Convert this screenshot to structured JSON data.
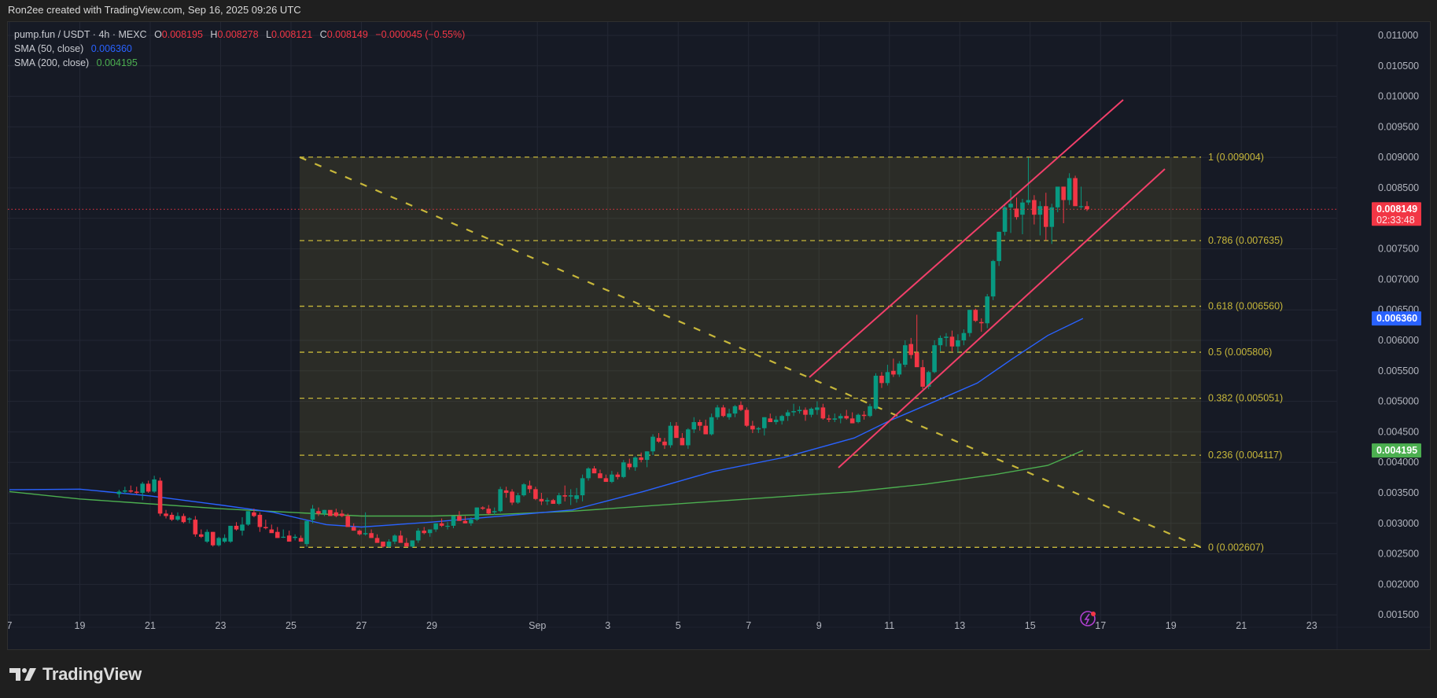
{
  "header": {
    "credit": "Ron2ee created with TradingView.com, Sep 16, 2025 09:26 UTC"
  },
  "legend": {
    "symbol": "pump.fun / USDT · 4h · MEXC",
    "open_label": "O",
    "open": "0.008195",
    "high_label": "H",
    "high": "0.008278",
    "low_label": "L",
    "low": "0.008121",
    "close_label": "C",
    "close": "0.008149",
    "change": "−0.000045 (−0.55%)",
    "sma50_label": "SMA (50, close)",
    "sma50_value": "0.006360",
    "sma200_label": "SMA (200, close)",
    "sma200_value": "0.004195"
  },
  "price_axis": {
    "ticks": [
      "0.011000",
      "0.010500",
      "0.010000",
      "0.009500",
      "0.009000",
      "0.008500",
      "0.008000",
      "0.007500",
      "0.007000",
      "0.006500",
      "0.006000",
      "0.005500",
      "0.005000",
      "0.004500",
      "0.004000",
      "0.003500",
      "0.003000",
      "0.002500",
      "0.002000",
      "0.001500"
    ],
    "last_price_badge": {
      "value": "0.008149",
      "countdown": "02:33:48",
      "color": "#f23645"
    },
    "sma50_badge": {
      "value": "0.006360",
      "color": "#2962ff"
    },
    "sma200_badge": {
      "value": "0.004195",
      "color": "#4caf50"
    }
  },
  "time_axis": {
    "labels": [
      "7",
      "19",
      "21",
      "23",
      "25",
      "27",
      "29",
      "Sep",
      "3",
      "5",
      "7",
      "9",
      "11",
      "13",
      "15",
      "17",
      "19",
      "21",
      "23"
    ]
  },
  "footer": {
    "brand": "TradingView"
  },
  "colors": {
    "up": "#089981",
    "down": "#f23645",
    "sma50": "#2962ff",
    "sma200": "#4caf50",
    "fib": "#c7b73a",
    "channel": "#f23f6a",
    "background": "#161a25"
  },
  "chart_data": {
    "type": "candlestick",
    "title": "pump.fun / USDT · 4h · MEXC",
    "xlabel": "",
    "ylabel": "",
    "ylim": [
      0.00125,
      0.0112
    ],
    "x_range": [
      "Aug 17 2025",
      "Sep 24 2025"
    ],
    "grid": true,
    "fibonacci_retracement": {
      "levels": [
        {
          "ratio": "1",
          "price": 0.009004,
          "label": "1 (0.009004)"
        },
        {
          "ratio": "0.786",
          "price": 0.007635,
          "label": "0.786 (0.007635)"
        },
        {
          "ratio": "0.618",
          "price": 0.00656,
          "label": "0.618 (0.006560)"
        },
        {
          "ratio": "0.5",
          "price": 0.005806,
          "label": "0.5 (0.005806)"
        },
        {
          "ratio": "0.382",
          "price": 0.005051,
          "label": "0.382 (0.005051)"
        },
        {
          "ratio": "0.236",
          "price": 0.004117,
          "label": "0.236 (0.004117)"
        },
        {
          "ratio": "0",
          "price": 0.002607,
          "label": "0 (0.002607)"
        }
      ],
      "start": "Aug 25",
      "end": "Sep 19.5"
    },
    "ascending_channel": {
      "upper": [
        [
          "Sep 8.5",
          0.005
        ],
        [
          "Sep 17.4",
          0.00955
        ]
      ],
      "lower": [
        [
          "Sep 9.3",
          0.00395
        ],
        [
          "Sep 18.5",
          0.00885
        ]
      ]
    },
    "sma": [
      {
        "name": "SMA (50, close)",
        "last": 0.00636
      },
      {
        "name": "SMA (200, close)",
        "last": 0.004195
      }
    ],
    "last_close": 0.008149,
    "candles_ohlc": [
      [
        0.00348,
        0.00355,
        0.00342,
        0.00352
      ],
      [
        0.00352,
        0.0036,
        0.00348,
        0.00354
      ],
      [
        0.00354,
        0.00362,
        0.0035,
        0.00352
      ],
      [
        0.00352,
        0.0036,
        0.00348,
        0.0035
      ],
      [
        0.0035,
        0.00368,
        0.00338,
        0.00365
      ],
      [
        0.00365,
        0.0037,
        0.0035,
        0.00352
      ],
      [
        0.00352,
        0.00378,
        0.0035,
        0.00372
      ],
      [
        0.0037,
        0.00375,
        0.00312,
        0.00316
      ],
      [
        0.00316,
        0.00322,
        0.00308,
        0.00312
      ],
      [
        0.00314,
        0.00318,
        0.00304,
        0.00306
      ],
      [
        0.00306,
        0.00318,
        0.00304,
        0.00312
      ],
      [
        0.00312,
        0.00316,
        0.003,
        0.00302
      ],
      [
        0.00306,
        0.0031,
        0.003,
        0.00308
      ],
      [
        0.00306,
        0.00312,
        0.00278,
        0.00282
      ],
      [
        0.00282,
        0.0029,
        0.00276,
        0.00278
      ],
      [
        0.0027,
        0.0029,
        0.00268,
        0.00286
      ],
      [
        0.00286,
        0.00286,
        0.00262,
        0.00264
      ],
      [
        0.00264,
        0.00278,
        0.00262,
        0.00276
      ],
      [
        0.0027,
        0.00282,
        0.00268,
        0.00276
      ],
      [
        0.0027,
        0.00292,
        0.00268,
        0.00296
      ],
      [
        0.00296,
        0.00302,
        0.00288,
        0.0029
      ],
      [
        0.00288,
        0.0031,
        0.0028,
        0.00298
      ],
      [
        0.00298,
        0.0032,
        0.00296,
        0.0032
      ],
      [
        0.00318,
        0.00324,
        0.0031,
        0.00312
      ],
      [
        0.00314,
        0.00318,
        0.00286,
        0.00294
      ],
      [
        0.00294,
        0.00306,
        0.0029,
        0.00292
      ],
      [
        0.0029,
        0.00298,
        0.00286,
        0.00284
      ],
      [
        0.00286,
        0.00294,
        0.00276,
        0.00276
      ],
      [
        0.00278,
        0.0029,
        0.00276,
        0.00278
      ],
      [
        0.0028,
        0.00288,
        0.0027,
        0.0027
      ],
      [
        0.00276,
        0.00282,
        0.00272,
        0.00278
      ],
      [
        0.00276,
        0.0028,
        0.0027,
        0.0027
      ],
      [
        0.00266,
        0.003,
        0.00262,
        0.00304
      ],
      [
        0.00306,
        0.0033,
        0.003,
        0.00324
      ],
      [
        0.0032,
        0.00326,
        0.00312,
        0.00316
      ],
      [
        0.00316,
        0.00322,
        0.00312,
        0.00322
      ],
      [
        0.00322,
        0.0032,
        0.00312,
        0.00312
      ],
      [
        0.00318,
        0.00324,
        0.0031,
        0.00312
      ],
      [
        0.00316,
        0.00322,
        0.0031,
        0.00312
      ],
      [
        0.00312,
        0.00316,
        0.00296,
        0.00294
      ],
      [
        0.00294,
        0.003,
        0.00288,
        0.00288
      ],
      [
        0.00288,
        0.0029,
        0.0028,
        0.00282
      ],
      [
        0.00282,
        0.00318,
        0.0028,
        0.00284
      ],
      [
        0.00284,
        0.0029,
        0.00276,
        0.00276
      ],
      [
        0.00276,
        0.00282,
        0.0027,
        0.00268
      ],
      [
        0.0027,
        0.0027,
        0.0026,
        0.00262
      ],
      [
        0.00262,
        0.00274,
        0.0026,
        0.0027
      ],
      [
        0.0027,
        0.00282,
        0.00266,
        0.0028
      ],
      [
        0.0028,
        0.00288,
        0.0027,
        0.00268
      ],
      [
        0.00268,
        0.00276,
        0.00262,
        0.00262
      ],
      [
        0.00262,
        0.00272,
        0.0026,
        0.00272
      ],
      [
        0.00272,
        0.00292,
        0.00268,
        0.00288
      ],
      [
        0.00288,
        0.00294,
        0.00282,
        0.00284
      ],
      [
        0.00284,
        0.0029,
        0.00278,
        0.0029
      ],
      [
        0.0029,
        0.003,
        0.00286,
        0.003
      ],
      [
        0.003,
        0.00308,
        0.00294,
        0.00296
      ],
      [
        0.00296,
        0.00302,
        0.0029,
        0.00296
      ],
      [
        0.00296,
        0.00312,
        0.00292,
        0.00312
      ],
      [
        0.00312,
        0.0032,
        0.00306,
        0.00304
      ],
      [
        0.00304,
        0.00312,
        0.003,
        0.003
      ],
      [
        0.003,
        0.0031,
        0.00296,
        0.00306
      ],
      [
        0.00306,
        0.00326,
        0.00304,
        0.00326
      ],
      [
        0.00326,
        0.00328,
        0.00322,
        0.00324
      ],
      [
        0.00324,
        0.0033,
        0.00314,
        0.00316
      ],
      [
        0.00318,
        0.00326,
        0.00314,
        0.0032
      ],
      [
        0.0032,
        0.0036,
        0.00318,
        0.00356
      ],
      [
        0.00354,
        0.0036,
        0.00342,
        0.0035
      ],
      [
        0.00352,
        0.00356,
        0.0033,
        0.00334
      ],
      [
        0.00334,
        0.0035,
        0.00332,
        0.00346
      ],
      [
        0.00346,
        0.00366,
        0.00344,
        0.00364
      ],
      [
        0.00362,
        0.0037,
        0.0035,
        0.00356
      ],
      [
        0.00356,
        0.0036,
        0.00338,
        0.0034
      ],
      [
        0.0034,
        0.0035,
        0.0033,
        0.00336
      ],
      [
        0.00336,
        0.00342,
        0.0033,
        0.00338
      ],
      [
        0.00338,
        0.0034,
        0.00332,
        0.00332
      ],
      [
        0.00332,
        0.0035,
        0.0033,
        0.00346
      ],
      [
        0.00346,
        0.00362,
        0.00336,
        0.00344
      ],
      [
        0.00344,
        0.00356,
        0.0033,
        0.00346
      ],
      [
        0.0034,
        0.00358,
        0.00334,
        0.00346
      ],
      [
        0.00346,
        0.0038,
        0.00336,
        0.00374
      ],
      [
        0.00374,
        0.00392,
        0.0037,
        0.0039
      ],
      [
        0.0039,
        0.00394,
        0.00382,
        0.00382
      ],
      [
        0.00382,
        0.00388,
        0.00376,
        0.00374
      ],
      [
        0.00374,
        0.0038,
        0.0037,
        0.00368
      ],
      [
        0.00368,
        0.00386,
        0.00366,
        0.0038
      ],
      [
        0.0038,
        0.00384,
        0.00372,
        0.00376
      ],
      [
        0.00376,
        0.00404,
        0.00374,
        0.004
      ],
      [
        0.00398,
        0.00406,
        0.00388,
        0.00392
      ],
      [
        0.00392,
        0.0041,
        0.00386,
        0.00408
      ],
      [
        0.00408,
        0.00416,
        0.004,
        0.00404
      ],
      [
        0.00404,
        0.00418,
        0.00392,
        0.00418
      ],
      [
        0.00418,
        0.00446,
        0.00412,
        0.00442
      ],
      [
        0.0044,
        0.00448,
        0.00432,
        0.00434
      ],
      [
        0.00434,
        0.0044,
        0.00422,
        0.00428
      ],
      [
        0.00428,
        0.00466,
        0.00424,
        0.0046
      ],
      [
        0.0046,
        0.00466,
        0.00444,
        0.0044
      ],
      [
        0.0044,
        0.00448,
        0.00428,
        0.00428
      ],
      [
        0.00428,
        0.00456,
        0.00422,
        0.00454
      ],
      [
        0.00454,
        0.00474,
        0.00448,
        0.00466
      ],
      [
        0.00466,
        0.0047,
        0.00452,
        0.0046
      ],
      [
        0.0046,
        0.0047,
        0.00446,
        0.00446
      ],
      [
        0.00446,
        0.0048,
        0.00444,
        0.00474
      ],
      [
        0.00474,
        0.00494,
        0.0047,
        0.0049
      ],
      [
        0.0049,
        0.00494,
        0.00474,
        0.00476
      ],
      [
        0.00474,
        0.00488,
        0.0047,
        0.0048
      ],
      [
        0.0048,
        0.00494,
        0.00474,
        0.00492
      ],
      [
        0.00494,
        0.005,
        0.00484,
        0.00486
      ],
      [
        0.00486,
        0.0049,
        0.00458,
        0.0046
      ],
      [
        0.0046,
        0.00468,
        0.00448,
        0.00454
      ],
      [
        0.00454,
        0.00458,
        0.00448,
        0.00456
      ],
      [
        0.00456,
        0.00474,
        0.00444,
        0.00474
      ],
      [
        0.00472,
        0.0048,
        0.00466,
        0.00466
      ],
      [
        0.00466,
        0.00476,
        0.00462,
        0.0047
      ],
      [
        0.00468,
        0.00478,
        0.00462,
        0.00476
      ],
      [
        0.00476,
        0.00486,
        0.00468,
        0.00482
      ],
      [
        0.00482,
        0.00496,
        0.00476,
        0.00484
      ],
      [
        0.00484,
        0.00492,
        0.0048,
        0.00486
      ],
      [
        0.00486,
        0.0049,
        0.00468,
        0.00478
      ],
      [
        0.00478,
        0.0049,
        0.00474,
        0.00488
      ],
      [
        0.00486,
        0.005,
        0.00478,
        0.0049
      ],
      [
        0.0049,
        0.00496,
        0.0047,
        0.00472
      ],
      [
        0.00472,
        0.00478,
        0.00466,
        0.0047
      ],
      [
        0.0047,
        0.0048,
        0.00466,
        0.00472
      ],
      [
        0.00472,
        0.0048,
        0.00464,
        0.00476
      ],
      [
        0.00476,
        0.00486,
        0.0047,
        0.00472
      ],
      [
        0.00472,
        0.00482,
        0.00464,
        0.00464
      ],
      [
        0.00466,
        0.0048,
        0.00464,
        0.00478
      ],
      [
        0.00478,
        0.00484,
        0.0047,
        0.00476
      ],
      [
        0.00476,
        0.00496,
        0.00474,
        0.00492
      ],
      [
        0.00488,
        0.00546,
        0.00486,
        0.00542
      ],
      [
        0.00542,
        0.00548,
        0.00522,
        0.0053
      ],
      [
        0.0053,
        0.0056,
        0.00526,
        0.00548
      ],
      [
        0.0055,
        0.0057,
        0.0054,
        0.00544
      ],
      [
        0.00544,
        0.00566,
        0.0054,
        0.00562
      ],
      [
        0.0056,
        0.006,
        0.00556,
        0.00592
      ],
      [
        0.00594,
        0.00604,
        0.0057,
        0.00576
      ],
      [
        0.0058,
        0.00642,
        0.0056,
        0.00556
      ],
      [
        0.00556,
        0.00568,
        0.0052,
        0.00524
      ],
      [
        0.00524,
        0.0055,
        0.0052,
        0.00548
      ],
      [
        0.00548,
        0.006,
        0.00546,
        0.00592
      ],
      [
        0.00592,
        0.00608,
        0.00582,
        0.00604
      ],
      [
        0.00604,
        0.00612,
        0.0059,
        0.00606
      ],
      [
        0.00606,
        0.00616,
        0.00582,
        0.0059
      ],
      [
        0.0059,
        0.0061,
        0.0058,
        0.006
      ],
      [
        0.006,
        0.00618,
        0.00592,
        0.00612
      ],
      [
        0.00612,
        0.0065,
        0.00606,
        0.0065
      ],
      [
        0.0065,
        0.00652,
        0.0063,
        0.00632
      ],
      [
        0.0063,
        0.00636,
        0.00614,
        0.00628
      ],
      [
        0.00628,
        0.00676,
        0.0062,
        0.00672
      ],
      [
        0.00672,
        0.00732,
        0.00666,
        0.0073
      ],
      [
        0.0073,
        0.00778,
        0.00722,
        0.00778
      ],
      [
        0.00778,
        0.00822,
        0.00772,
        0.00818
      ],
      [
        0.00818,
        0.00846,
        0.00776,
        0.00824
      ],
      [
        0.00816,
        0.00834,
        0.00798,
        0.00802
      ],
      [
        0.00806,
        0.00832,
        0.00774,
        0.00826
      ],
      [
        0.00826,
        0.009,
        0.00822,
        0.0083
      ],
      [
        0.0083,
        0.00838,
        0.0079,
        0.00806
      ],
      [
        0.00806,
        0.00828,
        0.00772,
        0.0082
      ],
      [
        0.0082,
        0.00842,
        0.00764,
        0.00786
      ],
      [
        0.00786,
        0.00824,
        0.00758,
        0.00818
      ],
      [
        0.00818,
        0.0085,
        0.0081,
        0.00852
      ],
      [
        0.00852,
        0.00852,
        0.00792,
        0.0083
      ],
      [
        0.0083,
        0.00874,
        0.00822,
        0.00866
      ],
      [
        0.00866,
        0.0087,
        0.00822,
        0.0082
      ],
      [
        0.0082,
        0.00852,
        0.00816,
        0.0082
      ],
      [
        0.0082,
        0.00828,
        0.00812,
        0.00815
      ]
    ]
  }
}
